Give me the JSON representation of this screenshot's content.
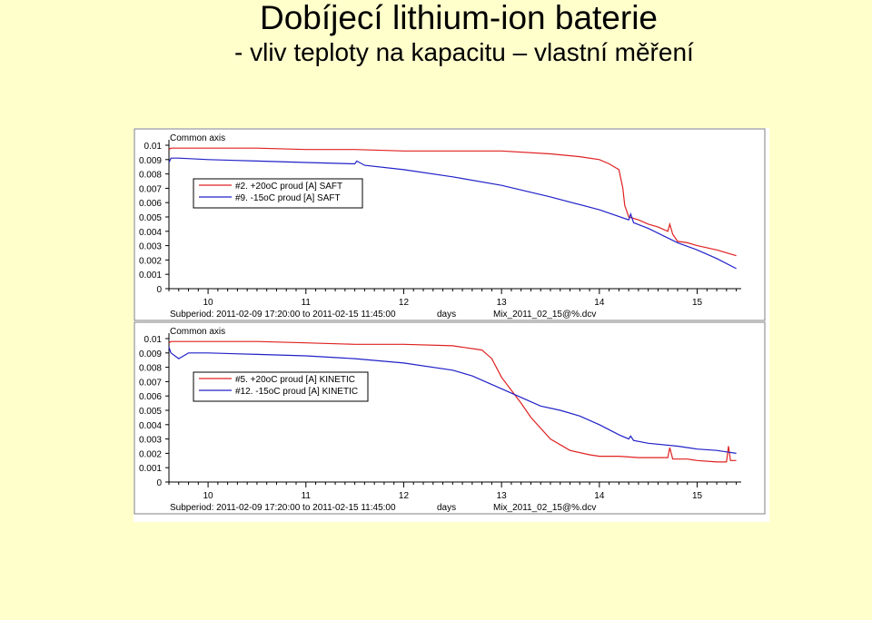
{
  "page": {
    "title": "Dobíjecí lithium-ion baterie",
    "subtitle": "- vliv teploty na kapacitu – vlastní měření"
  },
  "colors": {
    "background": "#ffffcc",
    "series_20c": "#e02020",
    "series_minus15c": "#2020c8"
  },
  "chart_data": [
    {
      "type": "line",
      "axis_title": "Common axis",
      "xlabel": "days",
      "subperiod": "Subperiod: 2011-02-09 17:20:00 to 2011-02-15 11:45:00",
      "file": "Mix_2011_02_15@%.dcv",
      "xlim": [
        9.6,
        15.45
      ],
      "ylim": [
        0,
        0.01
      ],
      "xticks": [
        10,
        11,
        12,
        13,
        14,
        15
      ],
      "yticks": [
        "0",
        "0.001",
        "0.002",
        "0.003",
        "0.004",
        "0.005",
        "0.006",
        "0.007",
        "0.008",
        "0.009",
        "0.01"
      ],
      "legend_position": "left",
      "series": [
        {
          "name": "#2.  +20oC proud [A] SAFT",
          "color": "#e02020",
          "x": [
            9.6,
            9.62,
            9.8,
            10.5,
            11.0,
            11.5,
            12.0,
            12.5,
            13.0,
            13.5,
            13.8,
            14.0,
            14.1,
            14.2,
            14.24,
            14.26,
            14.3,
            14.4,
            14.5,
            14.6,
            14.7,
            14.72,
            14.75,
            14.8,
            14.9,
            15.0,
            15.2,
            15.4
          ],
          "y": [
            0.0097,
            0.0098,
            0.0098,
            0.0098,
            0.0097,
            0.0097,
            0.0096,
            0.0096,
            0.0096,
            0.0094,
            0.0092,
            0.009,
            0.0087,
            0.0083,
            0.007,
            0.0058,
            0.005,
            0.0048,
            0.0045,
            0.0043,
            0.004,
            0.0045,
            0.0038,
            0.0033,
            0.0032,
            0.003,
            0.0027,
            0.0023
          ]
        },
        {
          "name": "#9.  -15oC proud [A] SAFT",
          "color": "#2020c8",
          "x": [
            9.6,
            9.62,
            9.7,
            10.0,
            10.5,
            11.0,
            11.5,
            11.52,
            11.6,
            12.0,
            12.5,
            13.0,
            13.5,
            14.0,
            14.3,
            14.32,
            14.35,
            14.5,
            14.8,
            15.0,
            15.2,
            15.4
          ],
          "y": [
            0.0088,
            0.0091,
            0.0091,
            0.009,
            0.0089,
            0.0088,
            0.0087,
            0.0089,
            0.0086,
            0.0083,
            0.0078,
            0.0072,
            0.0064,
            0.0055,
            0.0048,
            0.0052,
            0.0046,
            0.0042,
            0.0032,
            0.0027,
            0.0021,
            0.0014
          ]
        }
      ]
    },
    {
      "type": "line",
      "axis_title": "Common axis",
      "xlabel": "days",
      "subperiod": "Subperiod: 2011-02-09 17:20:00 to 2011-02-15 11:45:00",
      "file": "Mix_2011_02_15@%.dcv",
      "xlim": [
        9.6,
        15.45
      ],
      "ylim": [
        0,
        0.01
      ],
      "xticks": [
        10,
        11,
        12,
        13,
        14,
        15
      ],
      "yticks": [
        "0",
        "0.001",
        "0.002",
        "0.003",
        "0.004",
        "0.005",
        "0.006",
        "0.007",
        "0.008",
        "0.009",
        "0.01"
      ],
      "legend_position": "left",
      "series": [
        {
          "name": "#5.  +20oC proud [A] KINETIC",
          "color": "#e02020",
          "x": [
            9.6,
            9.62,
            9.8,
            10.5,
            11.0,
            11.5,
            12.0,
            12.5,
            12.8,
            12.9,
            13.0,
            13.1,
            13.2,
            13.3,
            13.5,
            13.7,
            13.9,
            14.0,
            14.2,
            14.4,
            14.6,
            14.7,
            14.72,
            14.75,
            14.9,
            15.0,
            15.2,
            15.3,
            15.32,
            15.34,
            15.4
          ],
          "y": [
            0.0097,
            0.0098,
            0.0098,
            0.0098,
            0.0097,
            0.0096,
            0.0096,
            0.0095,
            0.0092,
            0.0086,
            0.0073,
            0.0064,
            0.0055,
            0.0045,
            0.003,
            0.0022,
            0.0019,
            0.0018,
            0.0018,
            0.0017,
            0.0017,
            0.0017,
            0.0024,
            0.0016,
            0.0016,
            0.0015,
            0.0014,
            0.0014,
            0.0025,
            0.0015,
            0.0015
          ]
        },
        {
          "name": "#12.  -15oC proud [A] KINETIC",
          "color": "#2020c8",
          "x": [
            9.6,
            9.62,
            9.7,
            9.75,
            9.8,
            10.0,
            10.5,
            11.0,
            11.5,
            12.0,
            12.5,
            12.7,
            12.9,
            13.0,
            13.2,
            13.4,
            13.6,
            13.8,
            14.0,
            14.2,
            14.3,
            14.32,
            14.35,
            14.5,
            14.8,
            15.0,
            15.2,
            15.3,
            15.4
          ],
          "y": [
            0.0094,
            0.009,
            0.0086,
            0.0088,
            0.009,
            0.009,
            0.0089,
            0.0088,
            0.0086,
            0.0083,
            0.0078,
            0.0074,
            0.0068,
            0.0065,
            0.0059,
            0.0053,
            0.005,
            0.0046,
            0.004,
            0.0033,
            0.003,
            0.0032,
            0.0029,
            0.0027,
            0.0025,
            0.0023,
            0.0022,
            0.0021,
            0.002
          ]
        }
      ]
    }
  ]
}
